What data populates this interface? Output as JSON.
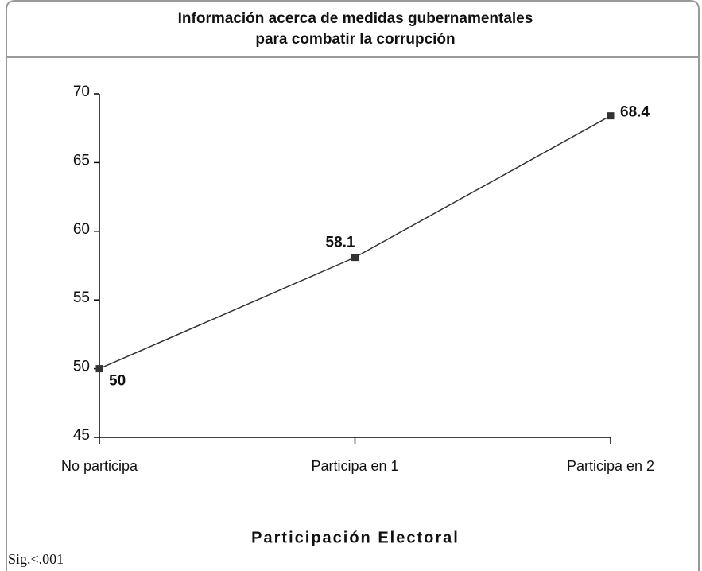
{
  "chart_data": {
    "type": "line",
    "title_lines": [
      "Información acerca de medidas gubernamentales",
      "para combatir la corrupción"
    ],
    "x_label": "Participación Electoral",
    "note": "Sig.<.001",
    "categories": [
      "No participa",
      "Participa en 1",
      "Participa en 2"
    ],
    "values": [
      50,
      58.1,
      68.4
    ],
    "color": "#333333",
    "ylim": [
      45,
      70
    ],
    "yticks": [
      45,
      50,
      55,
      60,
      65,
      70
    ],
    "grid": false
  }
}
